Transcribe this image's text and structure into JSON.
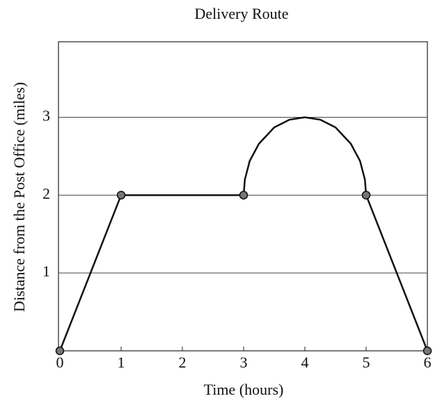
{
  "chart_data": {
    "type": "line",
    "title": "Delivery Route",
    "x_label": "Time (hours)",
    "y_label": "Distance from the Post Office (miles)",
    "series": [
      {
        "color": "#111111",
        "x": [
          0,
          1,
          3,
          3.02,
          3.1,
          3.25,
          3.5,
          3.75,
          4,
          4.25,
          4.5,
          4.75,
          4.9,
          4.98,
          5,
          6
        ],
        "values": [
          0,
          2,
          2,
          2.2,
          2.44,
          2.66,
          2.87,
          2.97,
          3,
          2.97,
          2.87,
          2.66,
          2.44,
          2.2,
          2,
          0
        ]
      },
      {
        "color": "#777777",
        "markers": true,
        "x": [
          0,
          1,
          3,
          5,
          6
        ],
        "values": [
          0,
          2,
          2,
          2,
          0
        ]
      }
    ],
    "xlim": [
      0,
      6
    ],
    "xticks": [
      0,
      1,
      2,
      3,
      4,
      5,
      6
    ],
    "ylim": [
      0,
      3.97
    ],
    "yticks": [
      1,
      2,
      3
    ],
    "grid": true
  }
}
